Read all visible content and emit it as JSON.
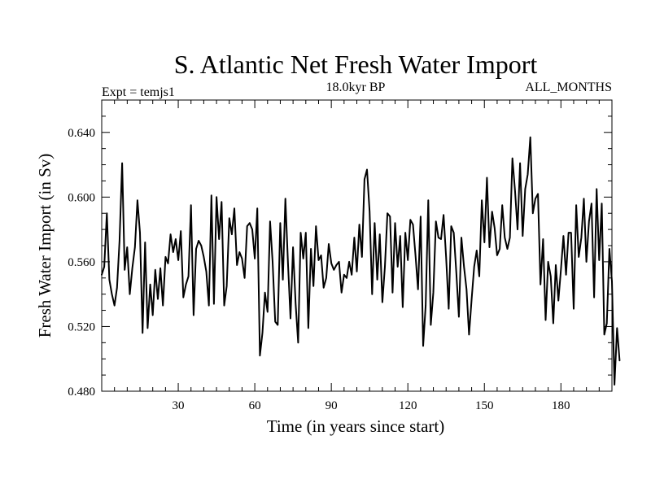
{
  "chart_data": {
    "type": "line",
    "title": "S. Atlantic Net Fresh Water Import",
    "subtitle_left": "Expt = temjs1",
    "subtitle_center": "18.0kyr BP",
    "subtitle_right": "ALL_MONTHS",
    "xlabel": "Time (in years since start)",
    "ylabel": "Fresh Water Import (in Sv)",
    "xlim": [
      0,
      200
    ],
    "ylim": [
      0.48,
      0.66
    ],
    "x_ticks": [
      30,
      60,
      90,
      120,
      150,
      180
    ],
    "x_tick_labels": [
      "30",
      "60",
      "90",
      "120",
      "150",
      "180"
    ],
    "y_ticks": [
      0.48,
      0.52,
      0.56,
      0.6,
      0.64
    ],
    "y_tick_labels": [
      "0.480",
      "0.520",
      "0.560",
      "0.600",
      "0.640"
    ],
    "x_start": 0,
    "x_step": 1,
    "series": [
      {
        "name": "Fresh Water Import",
        "color": "#000000",
        "values": [
          0.552,
          0.557,
          0.59,
          0.549,
          0.54,
          0.533,
          0.544,
          0.573,
          0.621,
          0.555,
          0.569,
          0.54,
          0.556,
          0.569,
          0.598,
          0.578,
          0.516,
          0.572,
          0.519,
          0.546,
          0.527,
          0.555,
          0.537,
          0.556,
          0.533,
          0.563,
          0.559,
          0.577,
          0.566,
          0.574,
          0.561,
          0.579,
          0.538,
          0.546,
          0.551,
          0.595,
          0.527,
          0.568,
          0.573,
          0.57,
          0.563,
          0.554,
          0.533,
          0.601,
          0.534,
          0.6,
          0.574,
          0.597,
          0.533,
          0.545,
          0.587,
          0.577,
          0.593,
          0.558,
          0.566,
          0.562,
          0.55,
          0.582,
          0.584,
          0.58,
          0.562,
          0.593,
          0.502,
          0.516,
          0.541,
          0.529,
          0.585,
          0.56,
          0.523,
          0.521,
          0.584,
          0.549,
          0.599,
          0.559,
          0.525,
          0.569,
          0.534,
          0.51,
          0.578,
          0.562,
          0.578,
          0.519,
          0.568,
          0.545,
          0.582,
          0.561,
          0.564,
          0.544,
          0.55,
          0.571,
          0.559,
          0.555,
          0.558,
          0.56,
          0.541,
          0.552,
          0.55,
          0.56,
          0.552,
          0.575,
          0.554,
          0.583,
          0.563,
          0.611,
          0.617,
          0.591,
          0.54,
          0.584,
          0.549,
          0.577,
          0.535,
          0.557,
          0.59,
          0.588,
          0.541,
          0.584,
          0.557,
          0.576,
          0.532,
          0.578,
          0.561,
          0.586,
          0.583,
          0.564,
          0.543,
          0.588,
          0.508,
          0.533,
          0.598,
          0.521,
          0.541,
          0.585,
          0.575,
          0.574,
          0.589,
          0.563,
          0.531,
          0.582,
          0.578,
          0.553,
          0.526,
          0.575,
          0.557,
          0.543,
          0.515,
          0.537,
          0.557,
          0.567,
          0.551,
          0.598,
          0.572,
          0.612,
          0.569,
          0.591,
          0.581,
          0.564,
          0.568,
          0.595,
          0.575,
          0.568,
          0.575,
          0.624,
          0.604,
          0.58,
          0.621,
          0.576,
          0.605,
          0.614,
          0.637,
          0.59,
          0.599,
          0.602,
          0.546,
          0.574,
          0.524,
          0.56,
          0.551,
          0.522,
          0.558,
          0.536,
          0.555,
          0.576,
          0.552,
          0.578,
          0.578,
          0.531,
          0.595,
          0.563,
          0.575,
          0.599,
          0.56,
          0.585,
          0.596,
          0.538,
          0.605,
          0.561,
          0.596,
          0.515,
          0.522,
          0.568,
          0.548,
          0.484,
          0.519,
          0.499
        ]
      }
    ]
  }
}
